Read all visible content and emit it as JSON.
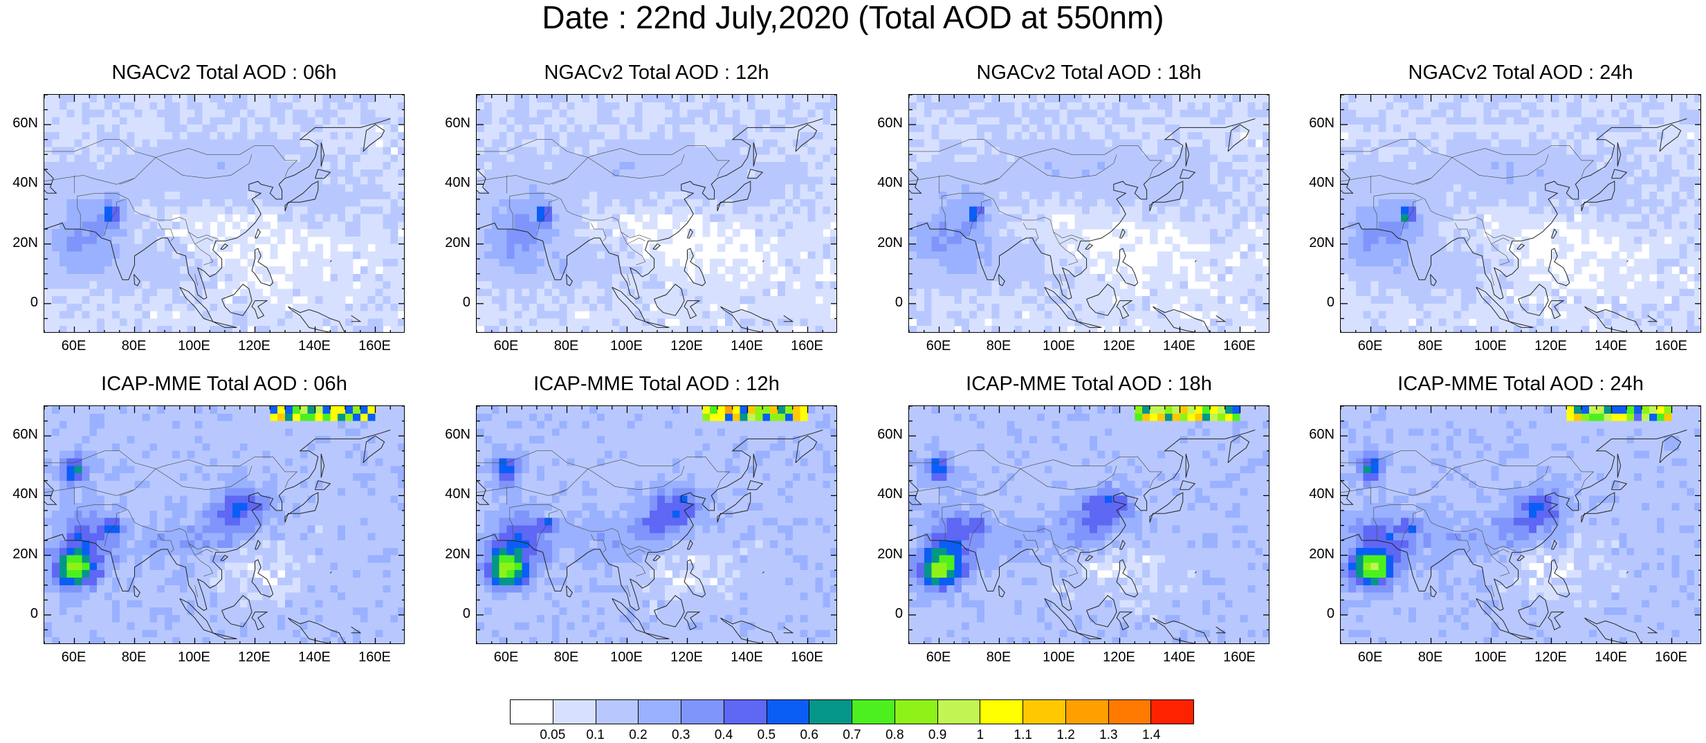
{
  "title": "Date : 22nd July,2020 (Total AOD at 550nm)",
  "panels": [
    {
      "title": "NGACv2 Total AOD : 06h",
      "model": "ngac"
    },
    {
      "title": "NGACv2 Total AOD : 12h",
      "model": "ngac"
    },
    {
      "title": "NGACv2 Total AOD : 18h",
      "model": "ngac"
    },
    {
      "title": "NGACv2 Total AOD : 24h",
      "model": "ngac"
    },
    {
      "title": "ICAP-MME Total AOD : 06h",
      "model": "icap"
    },
    {
      "title": "ICAP-MME Total AOD : 12h",
      "model": "icap"
    },
    {
      "title": "ICAP-MME Total AOD : 18h",
      "model": "icap"
    },
    {
      "title": "ICAP-MME Total AOD : 24h",
      "model": "icap"
    }
  ],
  "lat_ticks": [
    "60N",
    "40N",
    "20N",
    "0"
  ],
  "lon_ticks": [
    "60E",
    "80E",
    "100E",
    "120E",
    "140E",
    "160E"
  ],
  "colorbar": {
    "labels": [
      "0.05",
      "0.1",
      "0.2",
      "0.3",
      "0.4",
      "0.5",
      "0.6",
      "0.7",
      "0.8",
      "0.9",
      "1",
      "1.1",
      "1.2",
      "1.3",
      "1.4"
    ],
    "colors": [
      "#ffffff",
      "#d7e1ff",
      "#b8c8ff",
      "#9ab1ff",
      "#7f95fb",
      "#5f67f5",
      "#0a5ef6",
      "#049688",
      "#4cf01f",
      "#8ef218",
      "#c2f553",
      "#ffff00",
      "#ffc800",
      "#ffa000",
      "#ff7a00",
      "#ff2200"
    ]
  }
}
